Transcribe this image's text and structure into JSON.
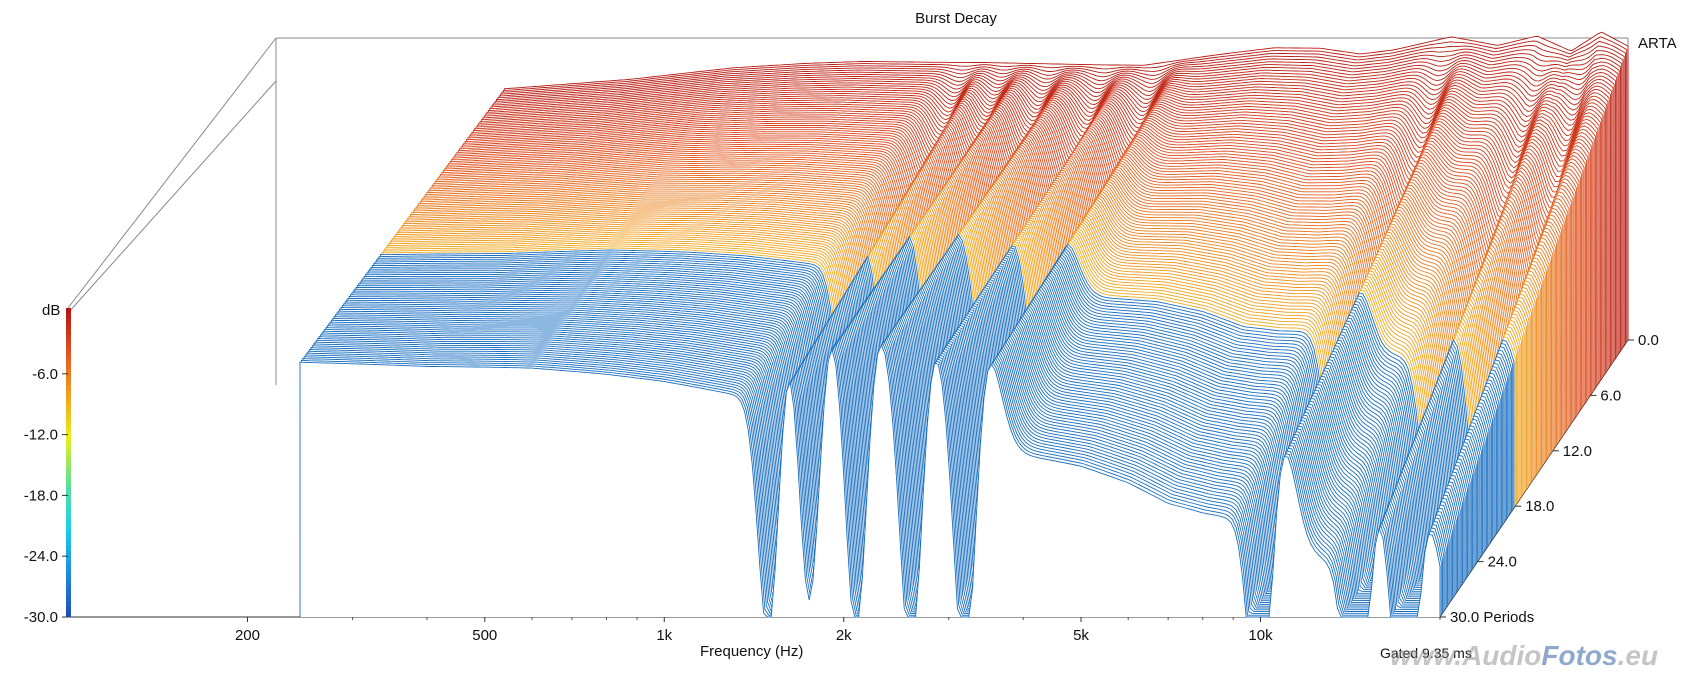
{
  "chart_data": {
    "type": "waterfall",
    "title": "Burst Decay",
    "xlabel": "Frequency (Hz)",
    "zlabel": "dB",
    "x_scale": "log",
    "xlim": [
      100,
      20000
    ],
    "x_ticks": [
      {
        "value": 200,
        "label": "200"
      },
      {
        "value": 500,
        "label": "500"
      },
      {
        "value": 1000,
        "label": "1k"
      },
      {
        "value": 2000,
        "label": "2k"
      },
      {
        "value": 5000,
        "label": "5k"
      },
      {
        "value": 10000,
        "label": "10k"
      }
    ],
    "z_ticks": [
      {
        "value": -6,
        "label": "-6.0"
      },
      {
        "value": -12,
        "label": "-12.0"
      },
      {
        "value": -18,
        "label": "-18.0"
      },
      {
        "value": -24,
        "label": "-24.0"
      },
      {
        "value": -30,
        "label": "-30.0"
      }
    ],
    "zlim": [
      -30,
      0
    ],
    "depth_ticks": [
      {
        "value": 0,
        "label": "0.0"
      },
      {
        "value": 6,
        "label": "6.0"
      },
      {
        "value": 12,
        "label": "12.0"
      },
      {
        "value": 18,
        "label": "18.0"
      },
      {
        "value": 24,
        "label": "24.0"
      },
      {
        "value": 30,
        "label": "30.0 Periods"
      }
    ],
    "depth_unit": "Periods",
    "depth_range": [
      0,
      30
    ],
    "gate_note": "Gated 9.35 ms",
    "brand": "ARTA",
    "colormap": [
      "#2050b0",
      "#1f8fe0",
      "#1fd0e8",
      "#60e090",
      "#e8f020",
      "#f0a020",
      "#e05020",
      "#b01010"
    ],
    "front_color": "#1a6fc0",
    "initial_response_db": [
      {
        "f": 250,
        "db": -1.5
      },
      {
        "f": 400,
        "db": -1.0
      },
      {
        "f": 600,
        "db": -0.2
      },
      {
        "f": 800,
        "db": 0.0
      },
      {
        "f": 1000,
        "db": 0.0
      },
      {
        "f": 1300,
        "db": -0.3
      },
      {
        "f": 1600,
        "db": -0.5
      },
      {
        "f": 2000,
        "db": -0.8
      },
      {
        "f": 2500,
        "db": -1.1
      },
      {
        "f": 3000,
        "db": -1.3
      },
      {
        "f": 4000,
        "db": -0.5
      },
      {
        "f": 5000,
        "db": 0.0
      },
      {
        "f": 6000,
        "db": -0.2
      },
      {
        "f": 7000,
        "db": -0.9
      },
      {
        "f": 8000,
        "db": -0.6
      },
      {
        "f": 10000,
        "db": 0.5
      },
      {
        "f": 12000,
        "db": -0.5
      },
      {
        "f": 14000,
        "db": 0.3
      },
      {
        "f": 16000,
        "db": -1.3
      },
      {
        "f": 18000,
        "db": 0.5
      },
      {
        "f": 20000,
        "db": -1.0
      }
    ],
    "decay_notches_hz": [
      1500,
      1750,
      2100,
      2600,
      3200,
      10000,
      14500,
      17500
    ]
  },
  "watermark": {
    "part1": "www.Audio",
    "part2": "Fotos",
    "part3": ".eu"
  }
}
